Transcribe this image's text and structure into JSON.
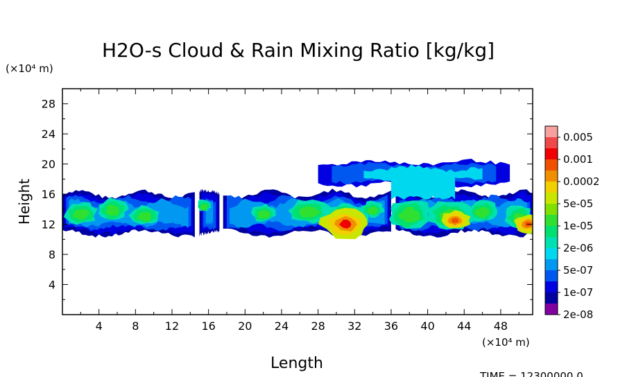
{
  "chart_data": {
    "type": "heatmap",
    "title": "H2O-s Cloud & Rain Mixing Ratio [kg/kg]",
    "xlabel": "Length",
    "ylabel": "Height",
    "x_unit": "(×10⁴ m)",
    "y_unit": "(×10⁴ m)",
    "xlim": [
      0,
      51.5
    ],
    "ylim": [
      0,
      30
    ],
    "x_ticks": [
      "4",
      "8",
      "12",
      "16",
      "20",
      "24",
      "28",
      "32",
      "36",
      "40",
      "44",
      "48"
    ],
    "y_ticks": [
      "4",
      "8",
      "12",
      "16",
      "20",
      "24",
      "28"
    ],
    "colorbar": {
      "labels": [
        "0.005",
        "0.001",
        "0.0002",
        "5e-05",
        "1e-05",
        "2e-06",
        "5e-07",
        "1e-07",
        "2e-08"
      ],
      "colors": [
        "#f7a0a0",
        "#f04848",
        "#f00000",
        "#f05000",
        "#f09000",
        "#f0d000",
        "#c8e600",
        "#80e000",
        "#30e030",
        "#00e070",
        "#00e0b0",
        "#00d8f0",
        "#0098f0",
        "#0058f0",
        "#0000e0",
        "#0000a0",
        "#8000a0"
      ]
    },
    "cloud_layer": {
      "main_band_height_range": [
        10.5,
        16.5
      ],
      "anvil_height_range": [
        17,
        21
      ],
      "anvil_x_range": [
        28,
        49
      ],
      "max_regions": [
        {
          "x": 31,
          "y": 12,
          "level": "0.001"
        },
        {
          "x": 43,
          "y": 12.5,
          "level": "0.0002"
        },
        {
          "x": 51,
          "y": 12,
          "level": "0.0002"
        }
      ]
    },
    "grid": false,
    "legend": "colorbar right"
  },
  "footer": {
    "time_label": "TIME = 12300000.0"
  }
}
